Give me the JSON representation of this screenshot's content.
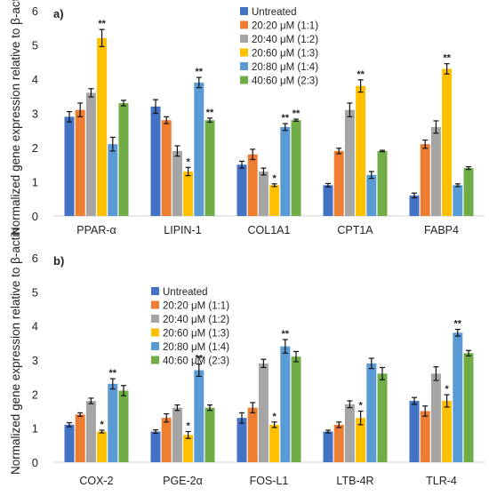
{
  "chart_data": [
    {
      "type": "bar",
      "panel_label": "a)",
      "ylabel": "Normalized gene expression relative to β-actin",
      "ylim": [
        0,
        6
      ],
      "yticks": [
        0,
        1,
        2,
        3,
        4,
        5,
        6
      ],
      "categories": [
        "PPAR-α",
        "LIPIN-1",
        "COL1A1",
        "CPT1A",
        "FABP4"
      ],
      "series": [
        {
          "name": "Untreated",
          "color": "#4472C4",
          "values": [
            2.9,
            3.2,
            1.5,
            0.9,
            0.6
          ],
          "errors": [
            0.15,
            0.2,
            0.1,
            0.05,
            0.07
          ],
          "sig": [
            "",
            "",
            "",
            "",
            ""
          ]
        },
        {
          "name": "20:20 μM (1:1)",
          "color": "#ED7D31",
          "values": [
            3.1,
            2.8,
            1.8,
            1.9,
            2.1
          ],
          "errors": [
            0.2,
            0.1,
            0.15,
            0.08,
            0.12
          ],
          "sig": [
            "",
            "",
            "",
            "",
            ""
          ]
        },
        {
          "name": "20:40 μM (1:2)",
          "color": "#A5A5A5",
          "values": [
            3.6,
            1.9,
            1.3,
            3.1,
            2.6
          ],
          "errors": [
            0.12,
            0.15,
            0.1,
            0.2,
            0.18
          ],
          "sig": [
            "",
            "",
            "",
            "",
            ""
          ]
        },
        {
          "name": "20:60 μM (1:3)",
          "color": "#FFC000",
          "values": [
            5.2,
            1.3,
            0.9,
            3.8,
            4.3
          ],
          "errors": [
            0.25,
            0.12,
            0.04,
            0.18,
            0.15
          ],
          "sig": [
            "**",
            "*",
            "*",
            "**",
            "**"
          ]
        },
        {
          "name": "20:80 μM (1:4)",
          "color": "#5B9BD5",
          "values": [
            2.1,
            3.9,
            2.6,
            1.2,
            0.9
          ],
          "errors": [
            0.2,
            0.15,
            0.1,
            0.1,
            0.04
          ],
          "sig": [
            "",
            "**",
            "**",
            "",
            ""
          ]
        },
        {
          "name": "40:60 μM (2:3)",
          "color": "#70AD47",
          "values": [
            3.3,
            2.8,
            2.8,
            1.9,
            1.4
          ],
          "errors": [
            0.08,
            0.06,
            0.03,
            0.02,
            0.04
          ],
          "sig": [
            "",
            "**",
            "**",
            "",
            ""
          ]
        }
      ],
      "legend_position": "top-right",
      "grid": false
    },
    {
      "type": "bar",
      "panel_label": "b)",
      "ylabel": "Normalized gene expression relative to β-actin",
      "ylim": [
        0,
        6
      ],
      "yticks": [
        0,
        1,
        2,
        3,
        4,
        5,
        6
      ],
      "categories": [
        "COX-2",
        "PGE-2α",
        "FOS-L1",
        "LTB-4R",
        "TLR-4"
      ],
      "series": [
        {
          "name": "Untreated",
          "color": "#4472C4",
          "values": [
            1.1,
            0.9,
            1.3,
            0.9,
            1.8
          ],
          "errors": [
            0.06,
            0.05,
            0.15,
            0.04,
            0.1
          ],
          "sig": [
            "",
            "",
            "",
            "",
            ""
          ]
        },
        {
          "name": "20:20 μM (1:1)",
          "color": "#ED7D31",
          "values": [
            1.4,
            1.3,
            1.6,
            1.1,
            1.5
          ],
          "errors": [
            0.05,
            0.12,
            0.15,
            0.08,
            0.15
          ],
          "sig": [
            "",
            "",
            "",
            "",
            ""
          ]
        },
        {
          "name": "20:40 μM (1:2)",
          "color": "#A5A5A5",
          "values": [
            1.8,
            1.6,
            2.9,
            1.7,
            2.6
          ],
          "errors": [
            0.08,
            0.08,
            0.12,
            0.1,
            0.2
          ],
          "sig": [
            "",
            "",
            "",
            "",
            ""
          ]
        },
        {
          "name": "20:60 μM (1:3)",
          "color": "#FFC000",
          "values": [
            0.9,
            0.8,
            1.1,
            1.3,
            1.8
          ],
          "errors": [
            0.04,
            0.1,
            0.08,
            0.2,
            0.18
          ],
          "sig": [
            "*",
            "*",
            "*",
            "*",
            "*"
          ]
        },
        {
          "name": "20:80 μM (1:4)",
          "color": "#5B9BD5",
          "values": [
            2.3,
            2.7,
            3.4,
            2.9,
            3.8
          ],
          "errors": [
            0.15,
            0.18,
            0.2,
            0.15,
            0.1
          ],
          "sig": [
            "**",
            "**",
            "**",
            "",
            "**"
          ]
        },
        {
          "name": "40:60 μM (2:3)",
          "color": "#70AD47",
          "values": [
            2.1,
            1.6,
            3.1,
            2.6,
            3.2
          ],
          "errors": [
            0.15,
            0.08,
            0.15,
            0.18,
            0.08
          ],
          "sig": [
            "",
            "",
            "",
            "",
            ""
          ]
        }
      ],
      "legend_position": "top-left",
      "grid": false
    }
  ]
}
